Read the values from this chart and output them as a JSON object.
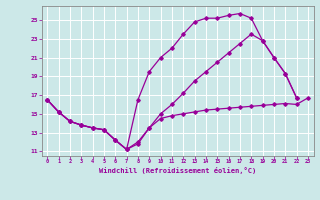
{
  "xlabel": "Windchill (Refroidissement éolien,°C)",
  "bg_color": "#cce8e8",
  "line_color": "#990099",
  "grid_color": "#ffffff",
  "xlim": [
    -0.5,
    23.5
  ],
  "ylim": [
    10.5,
    26.5
  ],
  "xticks": [
    0,
    1,
    2,
    3,
    4,
    5,
    6,
    7,
    8,
    9,
    10,
    11,
    12,
    13,
    14,
    15,
    16,
    17,
    18,
    19,
    20,
    21,
    22,
    23
  ],
  "yticks": [
    11,
    13,
    15,
    17,
    19,
    21,
    23,
    25
  ],
  "line1_x": [
    0,
    1,
    2,
    3,
    4,
    5,
    6,
    7,
    8,
    9,
    10,
    11,
    12,
    13,
    14,
    15,
    16,
    17,
    18,
    19,
    20,
    21,
    22,
    23
  ],
  "line1_y": [
    16.5,
    15.2,
    14.2,
    13.8,
    13.5,
    13.3,
    12.2,
    11.2,
    11.8,
    13.5,
    14.5,
    14.8,
    15.0,
    15.2,
    15.4,
    15.5,
    15.6,
    15.7,
    15.8,
    15.9,
    16.0,
    16.1,
    16.0,
    16.7
  ],
  "line2_x": [
    0,
    1,
    2,
    3,
    4,
    5,
    6,
    7,
    8,
    9,
    10,
    11,
    12,
    13,
    14,
    15,
    16,
    17,
    18,
    19,
    20,
    21,
    22
  ],
  "line2_y": [
    16.5,
    15.2,
    14.2,
    13.8,
    13.5,
    13.3,
    12.2,
    11.2,
    16.5,
    19.5,
    21.0,
    22.0,
    23.5,
    24.8,
    25.2,
    25.2,
    25.5,
    25.7,
    25.2,
    22.8,
    21.0,
    19.3,
    16.7
  ],
  "line3_x": [
    0,
    1,
    2,
    3,
    4,
    5,
    6,
    7,
    8,
    9,
    10,
    11,
    12,
    13,
    14,
    15,
    16,
    17,
    18,
    19,
    20,
    21,
    22
  ],
  "line3_y": [
    16.5,
    15.2,
    14.2,
    13.8,
    13.5,
    13.3,
    12.2,
    11.2,
    12.0,
    13.5,
    15.0,
    16.0,
    17.2,
    18.5,
    19.5,
    20.5,
    21.5,
    22.5,
    23.5,
    22.8,
    21.0,
    19.3,
    16.7
  ]
}
